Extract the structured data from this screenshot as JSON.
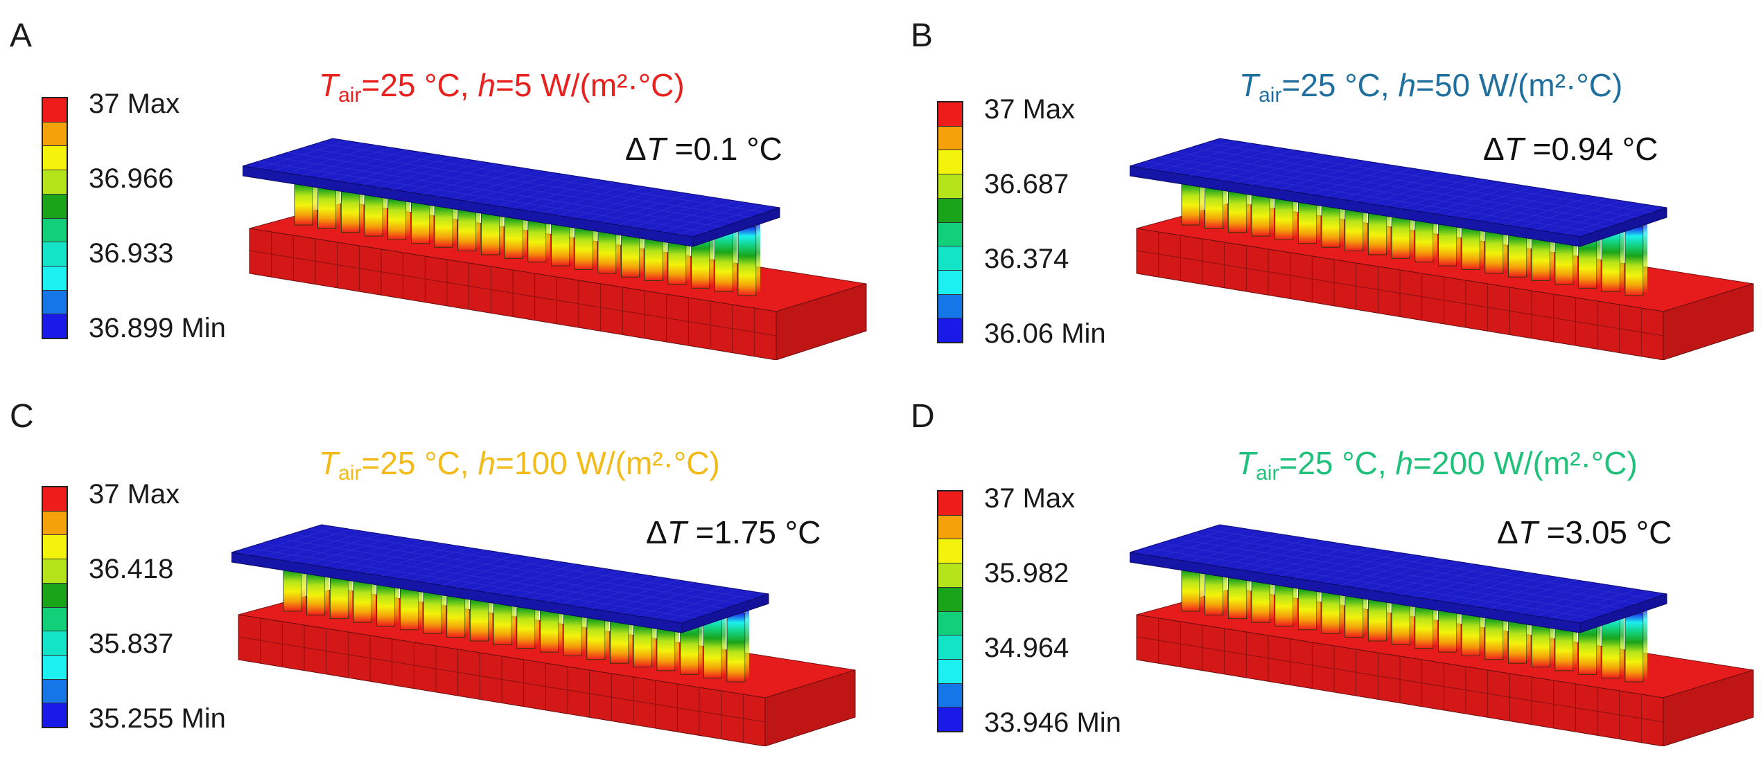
{
  "colors": {
    "scale": [
      "#ef1c1c",
      "#f5a20a",
      "#f3f30b",
      "#b5e41a",
      "#1aa41a",
      "#12d07a",
      "#13e3c7",
      "#1cf0f0",
      "#1576e8",
      "#1a1ae8"
    ],
    "plate": "#1c1cc8",
    "base": "#e61b1b"
  },
  "panels": [
    {
      "letter": "A",
      "cond_T": "T",
      "cond_sub": "air",
      "cond_mid": "=25 °C, ",
      "cond_h": "h",
      "cond_rest": "=5 W/(m²·°C)",
      "cond_color": "#e8201e",
      "delta_sym": "Δ",
      "delta_T": "T",
      "delta_val": " =0.1 °C",
      "labels": [
        "37 Max",
        "36.966",
        "36.933",
        "36.899 Min"
      ]
    },
    {
      "letter": "B",
      "cond_T": "T",
      "cond_sub": "air",
      "cond_mid": "=25 °C, ",
      "cond_h": "h",
      "cond_rest": "=50 W/(m²·°C)",
      "cond_color": "#1f6f9f",
      "delta_sym": "Δ",
      "delta_T": "T",
      "delta_val": " =0.94 °C",
      "labels": [
        "37 Max",
        "36.687",
        "36.374",
        "36.06 Min"
      ]
    },
    {
      "letter": "C",
      "cond_T": "T",
      "cond_sub": "air",
      "cond_mid": "=25 °C, ",
      "cond_h": "h",
      "cond_rest": "=100 W/(m²·°C)",
      "cond_color": "#f2bb17",
      "delta_sym": "Δ",
      "delta_T": "T",
      "delta_val": " =1.75 °C",
      "labels": [
        "37 Max",
        "36.418",
        "35.837",
        "35.255 Min"
      ]
    },
    {
      "letter": "D",
      "cond_T": "T",
      "cond_sub": "air",
      "cond_mid": "=25 °C, ",
      "cond_h": "h",
      "cond_rest": "=200 W/(m²·°C)",
      "cond_color": "#20c17a",
      "delta_sym": "Δ",
      "delta_T": "T",
      "delta_val": " =3.05 °C",
      "labels": [
        "37 Max",
        "35.982",
        "34.964",
        "33.946 Min"
      ]
    }
  ]
}
